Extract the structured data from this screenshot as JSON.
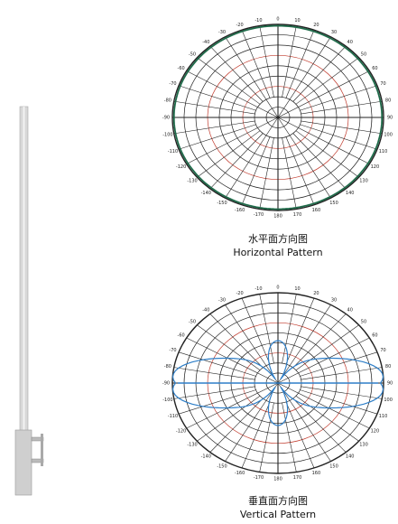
{
  "patterns": [
    {
      "caption_zh": "水平面方向图",
      "caption_en": "Horizontal Pattern",
      "angle_labels": [
        "0",
        "10",
        "20",
        "30",
        "40",
        "50",
        "60",
        "70",
        "80",
        "90",
        "100",
        "110",
        "120",
        "130",
        "140",
        "150",
        "160",
        "170",
        "180",
        "-170",
        "-160",
        "-150",
        "-140",
        "-130",
        "-120",
        "-110",
        "-100",
        "-90",
        "-80",
        "-70",
        "-60",
        "-50",
        "-40",
        "-30",
        "-20",
        "-10"
      ]
    },
    {
      "caption_zh": "垂直面方向图",
      "caption_en": "Vertical Pattern",
      "angle_labels": [
        "0",
        "10",
        "20",
        "30",
        "40",
        "50",
        "60",
        "70",
        "80",
        "90",
        "100",
        "110",
        "120",
        "130",
        "140",
        "150",
        "160",
        "170",
        "180",
        "-170",
        "-160",
        "-150",
        "-140",
        "-130",
        "-120",
        "-110",
        "-100",
        "-90",
        "-80",
        "-70",
        "-60",
        "-50",
        "-40",
        "-30",
        "-20",
        "-10"
      ]
    }
  ]
}
